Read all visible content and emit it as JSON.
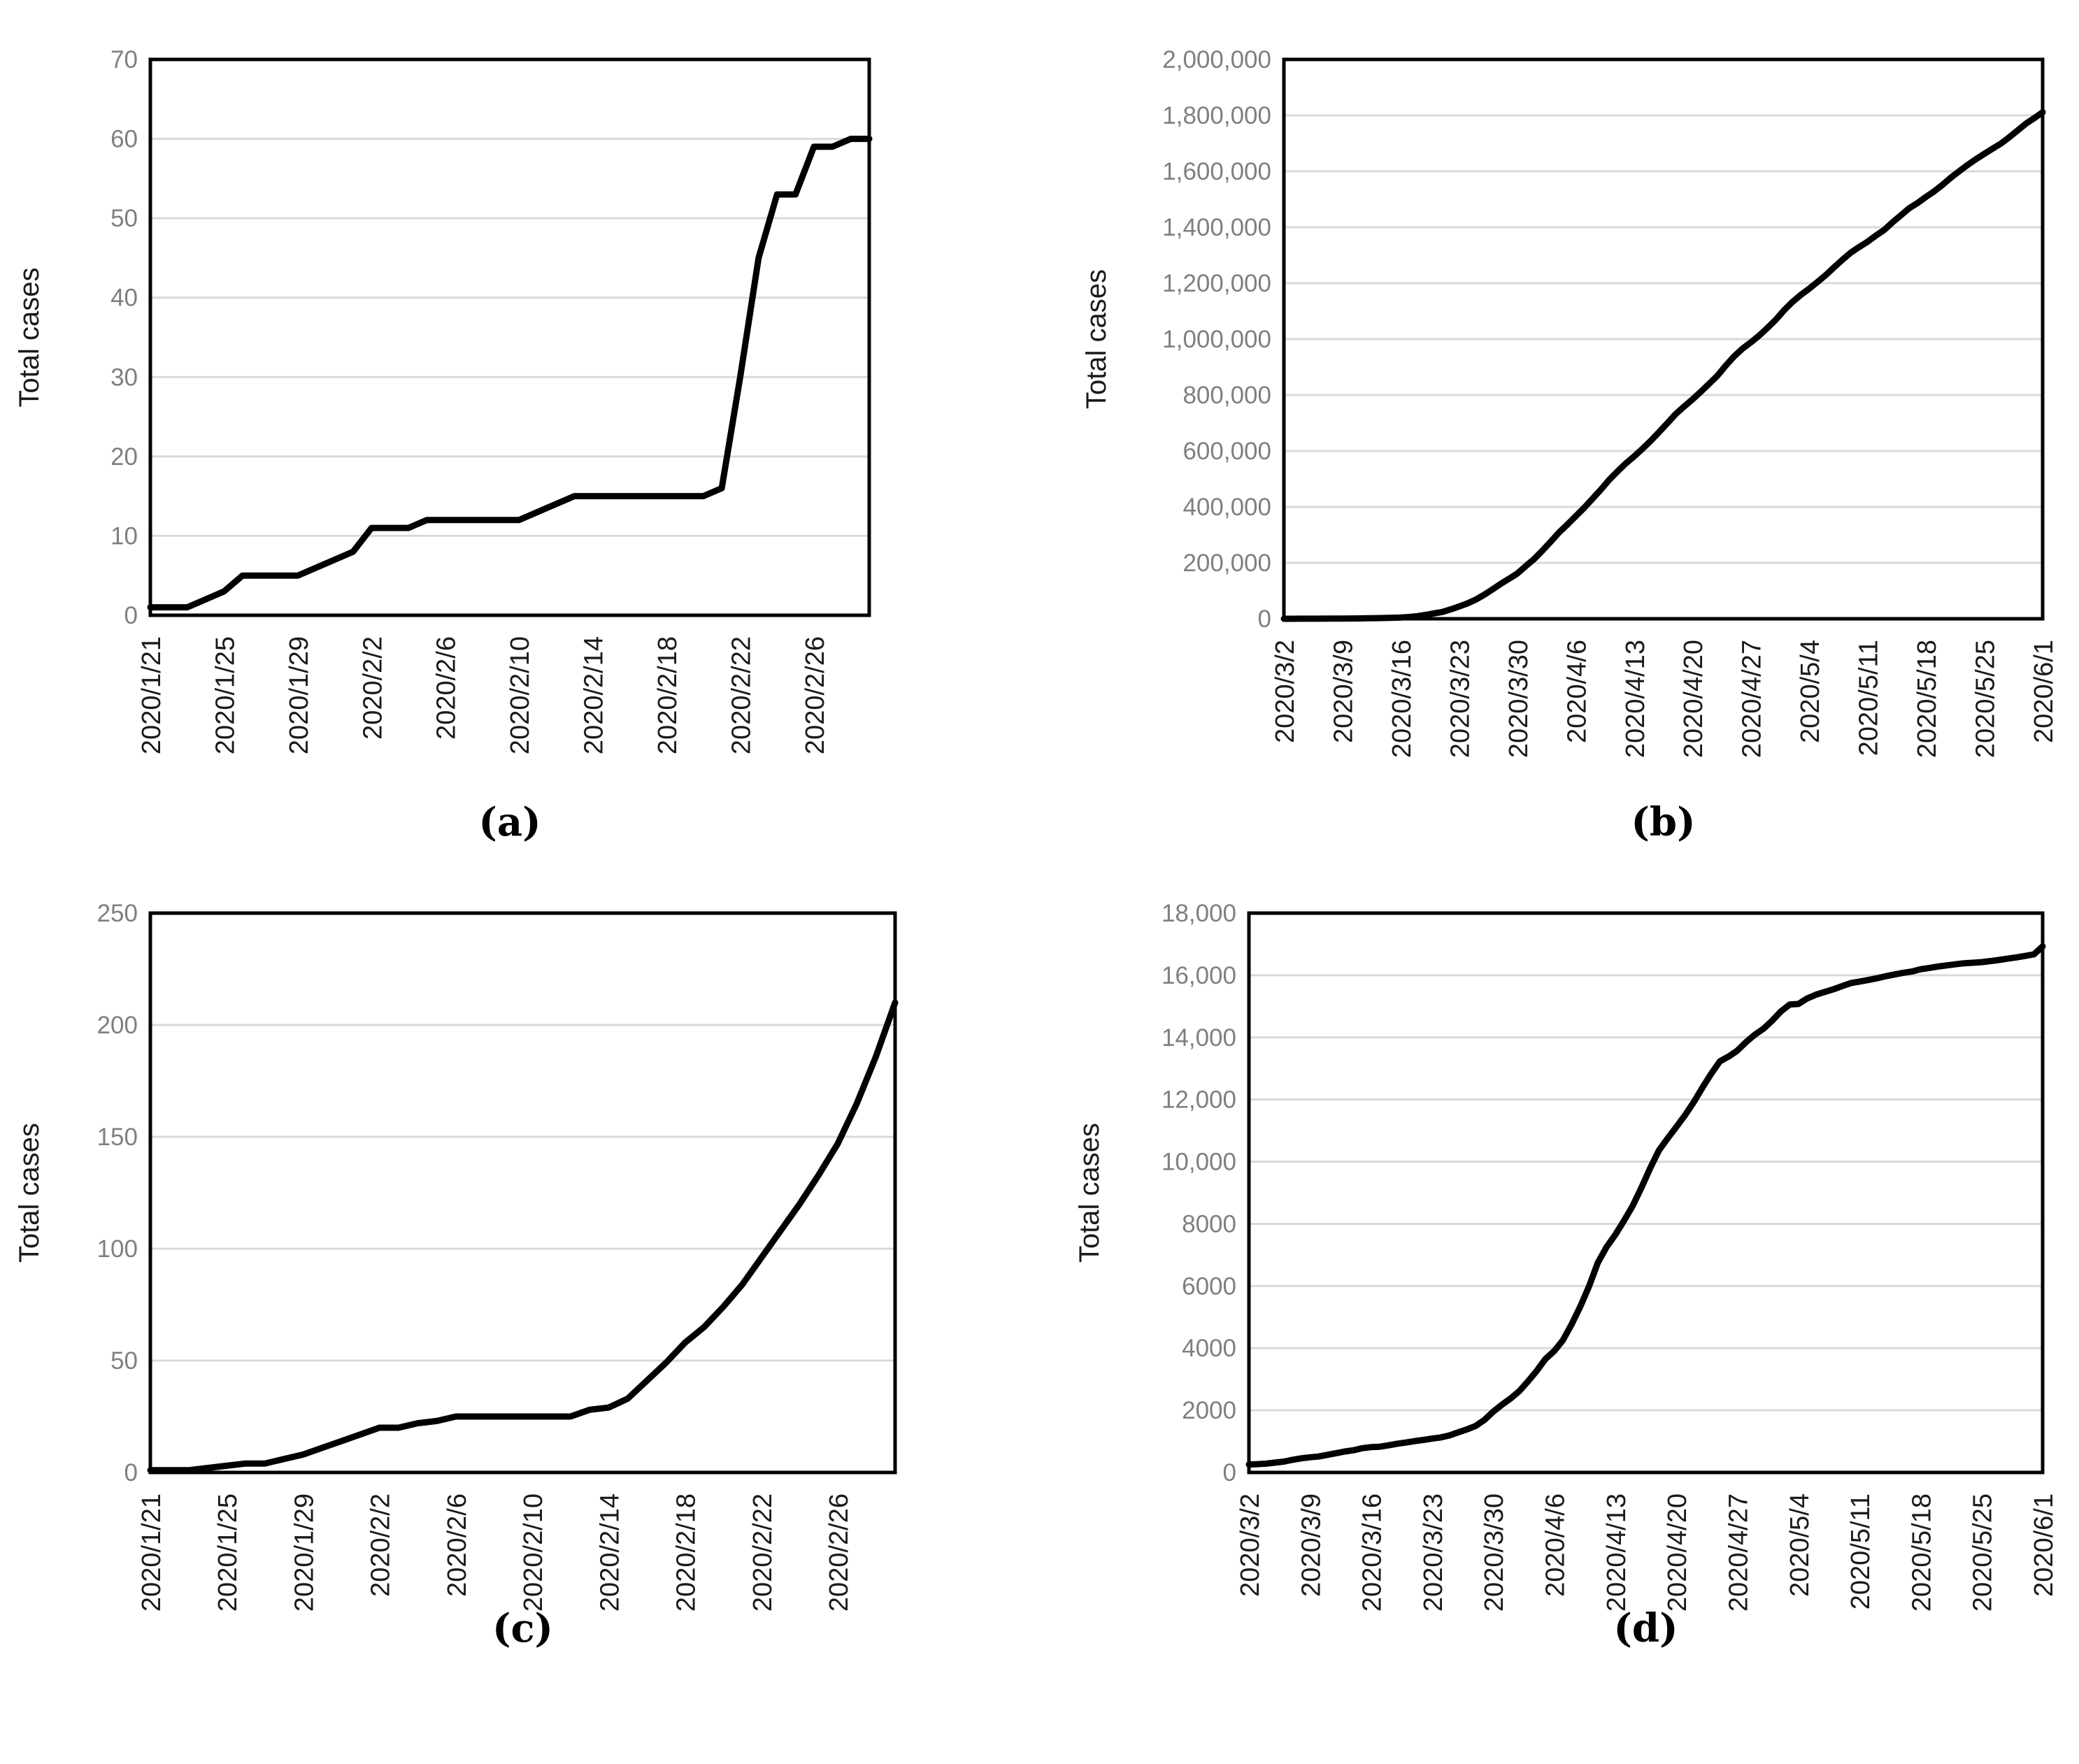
{
  "colors": {
    "background": "#ffffff",
    "grid": "#d9d9d9",
    "axis": "#000000",
    "series": "#000000",
    "y_tick_text": "#7f7f7f",
    "x_tick_text": "#1a1a1a"
  },
  "chart_data": [
    {
      "id": "a",
      "caption": "(a)",
      "type": "line",
      "title": "",
      "xlabel": "",
      "ylabel": "Total cases",
      "legend": "none",
      "grid": true,
      "line_color": "#000000",
      "ylim": [
        0,
        70
      ],
      "y_tick_labels": [
        "0",
        "10",
        "20",
        "30",
        "40",
        "50",
        "60",
        "70"
      ],
      "x_start": "2020/1/21",
      "x_end": "2020/2/29",
      "x_frequency": "daily",
      "n_points": 40,
      "x_tick_indices": [
        0,
        4,
        8,
        12,
        16,
        20,
        24,
        28,
        32,
        36
      ],
      "x_tick_labels": [
        "2020/1/21",
        "2020/1/25",
        "2020/1/29",
        "2020/2/2",
        "2020/2/6",
        "2020/2/10",
        "2020/2/14",
        "2020/2/18",
        "2020/2/22",
        "2020/2/26"
      ],
      "values": [
        1,
        1,
        1,
        2,
        3,
        5,
        5,
        5,
        5,
        6,
        7,
        8,
        11,
        11,
        11,
        12,
        12,
        12,
        12,
        12,
        12,
        13,
        14,
        15,
        15,
        15,
        15,
        15,
        15,
        15,
        15,
        16,
        30,
        45,
        53,
        53,
        59,
        59,
        60,
        60
      ]
    },
    {
      "id": "b",
      "caption": "(b)",
      "type": "line",
      "title": "",
      "xlabel": "",
      "ylabel": "Total cases",
      "legend": "none",
      "grid": true,
      "line_color": "#000000",
      "ylim": [
        0,
        2000000
      ],
      "y_tick_labels": [
        "0",
        "200,000",
        "400,000",
        "600,000",
        "800,000",
        "1,000,000",
        "1,200,000",
        "1,400,000",
        "1,600,000",
        "1,800,000",
        "2,000,000"
      ],
      "x_start": "2020/3/2",
      "x_end": "2020/6/1",
      "x_frequency": "daily",
      "n_points": 92,
      "x_tick_indices": [
        0,
        7,
        14,
        21,
        28,
        35,
        42,
        49,
        56,
        63,
        70,
        77,
        84,
        91
      ],
      "x_tick_labels": [
        "2020/3/2",
        "2020/3/9",
        "2020/3/16",
        "2020/3/23",
        "2020/3/30",
        "2020/4/6",
        "2020/4/13",
        "2020/4/20",
        "2020/4/27",
        "2020/5/4",
        "2020/5/11",
        "2020/5/18",
        "2020/5/25",
        "2020/6/1"
      ],
      "values": [
        100,
        124,
        158,
        221,
        319,
        435,
        541,
        704,
        994,
        1301,
        1630,
        2183,
        2770,
        3613,
        4596,
        6344,
        9197,
        13779,
        19367,
        24192,
        33592,
        43781,
        54856,
        68211,
        85435,
        104686,
        124665,
        143025,
        161807,
        188172,
        213372,
        243453,
        275586,
        308850,
        337072,
        366667,
        396223,
        429052,
        461437,
        496535,
        526396,
        555313,
        580619,
        607670,
        636350,
        667592,
        699706,
        732197,
        759086,
        784326,
        811865,
        840351,
        869170,
        905358,
        938154,
        965785,
        988197,
        1012582,
        1039909,
        1069424,
        1103461,
        1133069,
        1158040,
        1180375,
        1204351,
        1229331,
        1257023,
        1283929,
        1309541,
        1329260,
        1347881,
        1369964,
        1390406,
        1417774,
        1442824,
        1467884,
        1486742,
        1508308,
        1528568,
        1551853,
        1577287,
        1600481,
        1622670,
        1643246,
        1662302,
        1680913,
        1699176,
        1721750,
        1746019,
        1770384,
        1790191,
        1811277
      ]
    },
    {
      "id": "c",
      "caption": "(c)",
      "type": "line",
      "title": "",
      "xlabel": "",
      "ylabel": "Total cases",
      "legend": "none",
      "grid": true,
      "line_color": "#000000",
      "ylim": [
        0,
        250
      ],
      "y_tick_labels": [
        "0",
        "50",
        "100",
        "150",
        "200",
        "250"
      ],
      "x_start": "2020/1/21",
      "x_end": "2020/2/29",
      "x_frequency": "daily",
      "n_points": 40,
      "x_tick_indices": [
        0,
        4,
        8,
        12,
        16,
        20,
        24,
        28,
        32,
        36
      ],
      "x_tick_labels": [
        "2020/1/21",
        "2020/1/25",
        "2020/1/29",
        "2020/2/2",
        "2020/2/6",
        "2020/2/10",
        "2020/2/14",
        "2020/2/18",
        "2020/2/22",
        "2020/2/26"
      ],
      "values": [
        1,
        1,
        1,
        2,
        3,
        4,
        4,
        6,
        8,
        11,
        14,
        17,
        20,
        20,
        22,
        23,
        25,
        25,
        25,
        25,
        25,
        25,
        25,
        28,
        29,
        33,
        41,
        49,
        58,
        65,
        74,
        84,
        96,
        108,
        120,
        133,
        147,
        165,
        186,
        210
      ]
    },
    {
      "id": "d",
      "caption": "(d)",
      "type": "line",
      "title": "",
      "xlabel": "",
      "ylabel": "Total cases",
      "legend": "none",
      "grid": true,
      "line_color": "#000000",
      "ylim": [
        0,
        18000
      ],
      "y_tick_labels": [
        "0",
        "2000",
        "4000",
        "6000",
        "8000",
        "10,000",
        "12,000",
        "14,000",
        "16,000",
        "18,000"
      ],
      "x_start": "2020/3/2",
      "x_end": "2020/6/1",
      "x_frequency": "daily",
      "n_points": 92,
      "x_tick_indices": [
        0,
        7,
        14,
        21,
        28,
        35,
        42,
        49,
        56,
        63,
        70,
        77,
        84,
        91
      ],
      "x_tick_labels": [
        "2020/3/2",
        "2020/3/9",
        "2020/3/16",
        "2020/3/23",
        "2020/3/30",
        "2020/4/6",
        "2020/4/13",
        "2020/4/20",
        "2020/4/27",
        "2020/5/4",
        "2020/5/11",
        "2020/5/18",
        "2020/5/25",
        "2020/6/1"
      ],
      "values": [
        256,
        268,
        284,
        317,
        349,
        408,
        455,
        488,
        514,
        568,
        620,
        675,
        716,
        780,
        814,
        829,
        873,
        924,
        963,
        1007,
        1046,
        1089,
        1128,
        1193,
        1292,
        1387,
        1499,
        1693,
        1953,
        2178,
        2381,
        2617,
        2935,
        3271,
        3654,
        3906,
        4257,
        4768,
        5347,
        5992,
        6748,
        7255,
        7645,
        8100,
        8582,
        9167,
        9787,
        10361,
        10751,
        11119,
        11496,
        11919,
        12388,
        12829,
        13231,
        13385,
        13576,
        13852,
        14088,
        14281,
        14544,
        14839,
        15057,
        15077,
        15253,
        15374,
        15463,
        15547,
        15649,
        15747,
        15798,
        15847,
        15902,
        15968,
        16024,
        16079,
        16120,
        16193,
        16237,
        16280,
        16317,
        16353,
        16386,
        16402,
        16423,
        16456,
        16493,
        16536,
        16576,
        16623,
        16673,
        16930
      ]
    }
  ]
}
